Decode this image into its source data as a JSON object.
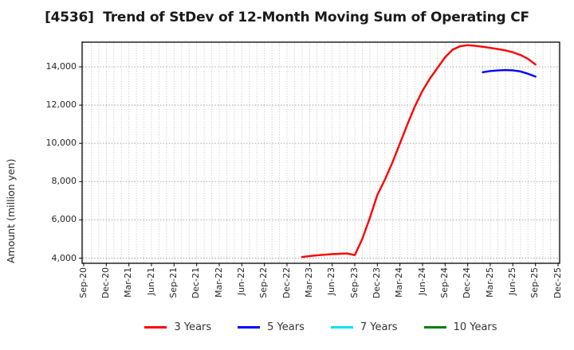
{
  "title": "[4536]  Trend of StDev of 12-Month Moving Sum of Operating CF",
  "chart_data": {
    "type": "line",
    "title": "[4536]  Trend of StDev of 12-Month Moving Sum of Operating CF",
    "xlabel": "",
    "ylabel": "Amount (million yen)",
    "grid": "on",
    "legend_position": "bottom",
    "x_tick_labels": [
      "Sep-20",
      "Dec-20",
      "Mar-21",
      "Jun-21",
      "Sep-21",
      "Dec-21",
      "Mar-22",
      "Jun-22",
      "Sep-22",
      "Dec-22",
      "Mar-23",
      "Jun-23",
      "Sep-23",
      "Dec-23",
      "Mar-24",
      "Jun-24",
      "Sep-24",
      "Dec-24",
      "Mar-25",
      "Jun-25",
      "Sep-25",
      "Dec-25"
    ],
    "months_per_tick": 3,
    "total_months": 64,
    "y_ticks": [
      4000,
      6000,
      8000,
      10000,
      12000,
      14000
    ],
    "ylim": [
      3730,
      15290
    ],
    "series": [
      {
        "name": "3 Years",
        "color": "#ff0000",
        "start_month": "Feb-23",
        "start_month_index": 29,
        "values": [
          4060,
          4110,
          4150,
          4180,
          4210,
          4230,
          4240,
          4160,
          5000,
          6100,
          7300,
          8100,
          9000,
          10000,
          11000,
          11950,
          12750,
          13400,
          13950,
          14500,
          14900,
          15080,
          15130,
          15100,
          15050,
          14990,
          14930,
          14860,
          14760,
          14620,
          14420,
          14120
        ]
      },
      {
        "name": "5 Years",
        "color": "#0000ff",
        "start_month": "Feb-25",
        "start_month_index": 53,
        "values": [
          13720,
          13780,
          13810,
          13830,
          13820,
          13760,
          13640,
          13490
        ]
      },
      {
        "name": "7 Years",
        "color": "#00e5ee",
        "start_month": null,
        "start_month_index": null,
        "values": []
      },
      {
        "name": "10 Years",
        "color": "#008000",
        "start_month": null,
        "start_month_index": null,
        "values": []
      }
    ]
  },
  "layout_colors": {
    "spine": "#000000",
    "grid_horizontal": "#999999",
    "grid_vertical": "#b3b3b3",
    "tick_text": "#262626"
  }
}
